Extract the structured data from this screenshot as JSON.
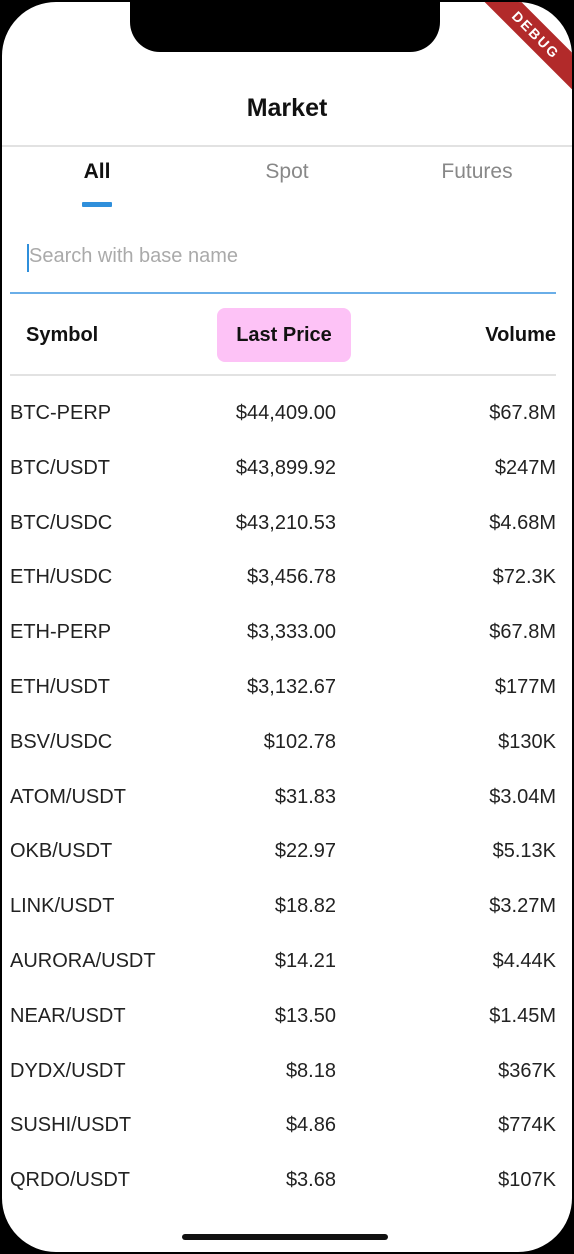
{
  "debug_banner": "DEBUG",
  "header": {
    "title": "Market"
  },
  "tabs": [
    {
      "label": "All",
      "active": true
    },
    {
      "label": "Spot",
      "active": false
    },
    {
      "label": "Futures",
      "active": false
    }
  ],
  "search": {
    "placeholder": "Search with base name",
    "value": ""
  },
  "columns": {
    "symbol": "Symbol",
    "last_price": "Last Price",
    "volume": "Volume"
  },
  "rows": [
    {
      "symbol": "BTC-PERP",
      "price": "$44,409.00",
      "volume": "$67.8M"
    },
    {
      "symbol": "BTC/USDT",
      "price": "$43,899.92",
      "volume": "$247M"
    },
    {
      "symbol": "BTC/USDC",
      "price": "$43,210.53",
      "volume": "$4.68M"
    },
    {
      "symbol": "ETH/USDC",
      "price": "$3,456.78",
      "volume": "$72.3K"
    },
    {
      "symbol": "ETH-PERP",
      "price": "$3,333.00",
      "volume": "$67.8M"
    },
    {
      "symbol": "ETH/USDT",
      "price": "$3,132.67",
      "volume": "$177M"
    },
    {
      "symbol": "BSV/USDC",
      "price": "$102.78",
      "volume": "$130K"
    },
    {
      "symbol": "ATOM/USDT",
      "price": "$31.83",
      "volume": "$3.04M"
    },
    {
      "symbol": "OKB/USDT",
      "price": "$22.97",
      "volume": "$5.13K"
    },
    {
      "symbol": "LINK/USDT",
      "price": "$18.82",
      "volume": "$3.27M"
    },
    {
      "symbol": "AURORA/USDT",
      "price": "$14.21",
      "volume": "$4.44K"
    },
    {
      "symbol": "NEAR/USDT",
      "price": "$13.50",
      "volume": "$1.45M"
    },
    {
      "symbol": "DYDX/USDT",
      "price": "$8.18",
      "volume": "$367K"
    },
    {
      "symbol": "SUSHI/USDT",
      "price": "$4.86",
      "volume": "$774K"
    },
    {
      "symbol": "QRDO/USDT",
      "price": "$3.68",
      "volume": "$107K"
    }
  ],
  "colors": {
    "accent": "#2f8fdb",
    "highlight": "#fdc2f6",
    "debug": "#b22a2a"
  }
}
